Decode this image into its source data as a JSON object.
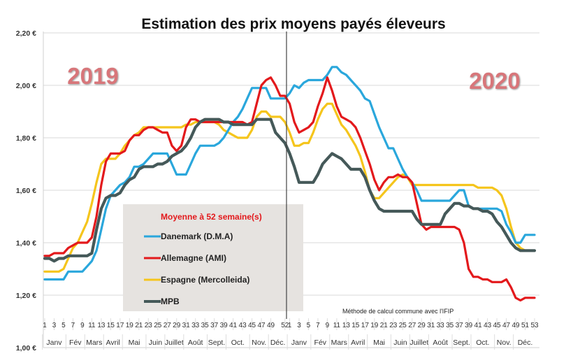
{
  "chart_data": {
    "type": "line",
    "title": "Estimation des prix moyens payés éleveurs",
    "xlabel": "",
    "ylabel": "",
    "ylim": [
      1.0,
      2.2
    ],
    "y_ticks": [
      "1,00 €",
      "1,20 €",
      "1,40 €",
      "1,60 €",
      "1,80 €",
      "2,00 €",
      "2,20 €"
    ],
    "grid": true,
    "legend_placement": "lower-center-left",
    "legend_title": "Moyenne à  52 semaine(s)",
    "year_labels": [
      "2019",
      "2020"
    ],
    "note": "Méthode de calcul commune avec l'IFIP",
    "x_tick_labels_2019": [
      "1",
      "3",
      "5",
      "7",
      "9",
      "11",
      "13",
      "15",
      "17",
      "19",
      "21",
      "23",
      "25",
      "27",
      "29",
      "31",
      "33",
      "35",
      "37",
      "39",
      "41",
      "43",
      "45",
      "47",
      "49",
      "52"
    ],
    "x_tick_labels_2020": [
      "1",
      "3",
      "5",
      "7",
      "9",
      "11",
      "13",
      "15",
      "17",
      "19",
      "21",
      "23",
      "25",
      "27",
      "29",
      "31",
      "33",
      "35",
      "37",
      "39",
      "41",
      "43",
      "45",
      "47",
      "49",
      "51",
      "53"
    ],
    "months": [
      "Janv",
      "Fév",
      "Mars",
      "Avril",
      "Mai",
      "Juin",
      "Juillet",
      "Août",
      "Sept.",
      "Oct.",
      "Nov.",
      "Déc."
    ],
    "weeks_2019": 52,
    "weeks_2020": 53,
    "series": [
      {
        "name": "Danemark (D.M.A)",
        "color": "#2aa7dc",
        "values_2019": [
          1.26,
          1.26,
          1.26,
          1.26,
          1.26,
          1.29,
          1.29,
          1.29,
          1.29,
          1.31,
          1.33,
          1.37,
          1.45,
          1.53,
          1.58,
          1.6,
          1.62,
          1.63,
          1.65,
          1.69,
          1.69,
          1.7,
          1.72,
          1.74,
          1.74,
          1.74,
          1.74,
          1.7,
          1.66,
          1.66,
          1.66,
          1.7,
          1.74,
          1.77,
          1.77,
          1.77,
          1.77,
          1.78,
          1.8,
          1.83,
          1.86,
          1.88,
          1.91,
          1.95,
          1.99,
          1.99,
          1.99,
          1.99,
          1.95,
          1.95,
          1.95,
          1.95
        ],
        "values_2020": [
          1.97,
          2.0,
          1.99,
          2.01,
          2.02,
          2.02,
          2.02,
          2.02,
          2.04,
          2.07,
          2.07,
          2.05,
          2.04,
          2.02,
          2.0,
          1.98,
          1.95,
          1.94,
          1.89,
          1.84,
          1.8,
          1.76,
          1.76,
          1.72,
          1.68,
          1.65,
          1.63,
          1.6,
          1.56,
          1.56,
          1.56,
          1.56,
          1.56,
          1.56,
          1.56,
          1.58,
          1.6,
          1.6,
          1.54,
          1.53,
          1.53,
          1.53,
          1.53,
          1.53,
          1.53,
          1.52,
          1.47,
          1.44,
          1.4,
          1.4,
          1.43,
          1.43,
          1.43
        ]
      },
      {
        "name": "Allemagne (AMI)",
        "color": "#e3191c",
        "values_2019": [
          1.35,
          1.35,
          1.36,
          1.36,
          1.36,
          1.38,
          1.39,
          1.4,
          1.4,
          1.4,
          1.42,
          1.5,
          1.62,
          1.71,
          1.74,
          1.74,
          1.74,
          1.75,
          1.79,
          1.81,
          1.81,
          1.83,
          1.84,
          1.84,
          1.83,
          1.82,
          1.82,
          1.77,
          1.75,
          1.77,
          1.84,
          1.87,
          1.87,
          1.86,
          1.86,
          1.86,
          1.86,
          1.86,
          1.86,
          1.86,
          1.86,
          1.86,
          1.86,
          1.85,
          1.86,
          1.93,
          2.0,
          2.02,
          2.03,
          2.0,
          1.96,
          1.96
        ],
        "values_2020": [
          1.93,
          1.86,
          1.82,
          1.83,
          1.84,
          1.86,
          1.92,
          1.97,
          2.03,
          1.98,
          1.92,
          1.88,
          1.87,
          1.86,
          1.84,
          1.8,
          1.75,
          1.7,
          1.64,
          1.6,
          1.63,
          1.65,
          1.65,
          1.66,
          1.65,
          1.65,
          1.63,
          1.55,
          1.47,
          1.45,
          1.46,
          1.46,
          1.46,
          1.46,
          1.46,
          1.46,
          1.45,
          1.4,
          1.3,
          1.27,
          1.27,
          1.26,
          1.26,
          1.25,
          1.25,
          1.25,
          1.26,
          1.23,
          1.19,
          1.18,
          1.19,
          1.19,
          1.19
        ]
      },
      {
        "name": "Espagne (Mercolleida)",
        "color": "#f5c51c",
        "values_2019": [
          1.29,
          1.29,
          1.29,
          1.29,
          1.3,
          1.34,
          1.38,
          1.4,
          1.44,
          1.48,
          1.55,
          1.63,
          1.7,
          1.72,
          1.72,
          1.72,
          1.74,
          1.77,
          1.79,
          1.81,
          1.82,
          1.84,
          1.84,
          1.84,
          1.84,
          1.84,
          1.84,
          1.84,
          1.84,
          1.84,
          1.85,
          1.85,
          1.86,
          1.86,
          1.86,
          1.86,
          1.86,
          1.85,
          1.83,
          1.82,
          1.81,
          1.8,
          1.8,
          1.8,
          1.83,
          1.88,
          1.9,
          1.9,
          1.88,
          1.88,
          1.88,
          1.86
        ],
        "values_2020": [
          1.82,
          1.77,
          1.77,
          1.78,
          1.78,
          1.82,
          1.87,
          1.91,
          1.93,
          1.93,
          1.89,
          1.85,
          1.83,
          1.8,
          1.77,
          1.73,
          1.67,
          1.6,
          1.57,
          1.57,
          1.59,
          1.61,
          1.63,
          1.65,
          1.66,
          1.65,
          1.62,
          1.62,
          1.62,
          1.62,
          1.62,
          1.62,
          1.62,
          1.62,
          1.62,
          1.62,
          1.62,
          1.62,
          1.62,
          1.62,
          1.61,
          1.61,
          1.61,
          1.61,
          1.6,
          1.58,
          1.53,
          1.46,
          1.4,
          1.38,
          1.37,
          1.37,
          1.37
        ]
      },
      {
        "name": "MPB",
        "color": "#455959",
        "values_2019": [
          1.34,
          1.34,
          1.33,
          1.34,
          1.34,
          1.35,
          1.35,
          1.35,
          1.35,
          1.35,
          1.36,
          1.45,
          1.53,
          1.57,
          1.58,
          1.58,
          1.59,
          1.62,
          1.64,
          1.65,
          1.68,
          1.69,
          1.69,
          1.69,
          1.7,
          1.7,
          1.71,
          1.73,
          1.74,
          1.75,
          1.77,
          1.8,
          1.84,
          1.86,
          1.87,
          1.87,
          1.87,
          1.87,
          1.86,
          1.86,
          1.85,
          1.85,
          1.85,
          1.85,
          1.85,
          1.87,
          1.87,
          1.87,
          1.87,
          1.82,
          1.8,
          1.78
        ],
        "values_2020": [
          1.74,
          1.69,
          1.63,
          1.63,
          1.63,
          1.63,
          1.66,
          1.7,
          1.72,
          1.74,
          1.73,
          1.72,
          1.7,
          1.68,
          1.68,
          1.68,
          1.65,
          1.6,
          1.56,
          1.53,
          1.52,
          1.52,
          1.52,
          1.52,
          1.52,
          1.52,
          1.52,
          1.49,
          1.47,
          1.47,
          1.47,
          1.47,
          1.47,
          1.51,
          1.53,
          1.55,
          1.55,
          1.54,
          1.54,
          1.53,
          1.53,
          1.52,
          1.52,
          1.51,
          1.48,
          1.46,
          1.43,
          1.4,
          1.38,
          1.37,
          1.37,
          1.37,
          1.37
        ]
      }
    ]
  }
}
